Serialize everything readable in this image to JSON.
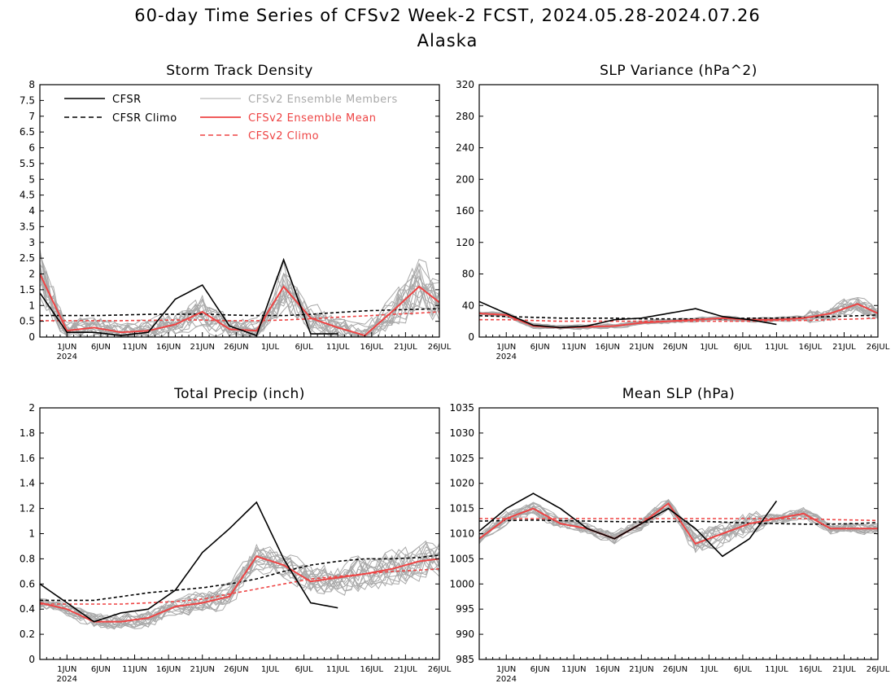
{
  "figure": {
    "title": "60-day Time Series of CFSv2 Week-2 FCST, 2024.05.28-2024.07.26",
    "subtitle": "Alaska"
  },
  "colors": {
    "cfsr": "#000000",
    "cfsr_climo": "#000000",
    "members": "#a9a9a9",
    "ens_mean": "#ee4444",
    "cfsv2_climo": "#ee4444"
  },
  "legend": {
    "cfsr": "CFSR",
    "cfsr_climo": "CFSR Climo",
    "members": "CFSv2 Ensemble Members",
    "ens_mean": "CFSv2 Ensemble Mean",
    "cfsv2_climo": "CFSv2 Climo"
  },
  "x_axis": {
    "ticks": [
      "1JUN",
      "6JUN",
      "11JUN",
      "16JUN",
      "21JUN",
      "26JUN",
      "1JUL",
      "6JUL",
      "11JUL",
      "16JUL",
      "21JUL",
      "26JUL"
    ],
    "year_label": "2024"
  },
  "chart_data": [
    {
      "type": "line",
      "title": "Storm Track Density",
      "legend_position": "top-left",
      "ylim": [
        0,
        8
      ],
      "yticks": [
        "0",
        "0.5",
        "1",
        "1.5",
        "2",
        "2.5",
        "3",
        "3.5",
        "4",
        "4.5",
        "5",
        "5.5",
        "6",
        "6.5",
        "7",
        "7.5",
        "8"
      ],
      "x": [
        "05-28",
        "06-01",
        "06-05",
        "06-09",
        "06-13",
        "06-17",
        "06-21",
        "06-25",
        "06-29",
        "07-03",
        "07-07",
        "07-11",
        "07-15",
        "07-19",
        "07-23",
        "07-26"
      ],
      "series": [
        {
          "name": "CFSR",
          "values": [
            1.4,
            0.15,
            0.15,
            0.05,
            0.15,
            1.2,
            1.65,
            0.35,
            0.05,
            2.45,
            0.1,
            0.1,
            null,
            null,
            null,
            null
          ]
        },
        {
          "name": "CFSR Climo",
          "values": [
            0.68,
            0.68,
            0.68,
            0.7,
            0.72,
            0.72,
            0.73,
            0.7,
            0.68,
            0.68,
            0.72,
            0.78,
            0.83,
            0.86,
            0.88,
            0.9
          ]
        },
        {
          "name": "CFSv2 Ensemble Mean",
          "values": [
            2.0,
            0.2,
            0.3,
            0.15,
            0.2,
            0.4,
            0.8,
            0.25,
            0.2,
            1.6,
            0.6,
            0.3,
            0.05,
            0.8,
            1.6,
            1.1
          ]
        },
        {
          "name": "CFSv2 Climo",
          "values": [
            0.52,
            0.52,
            0.52,
            0.52,
            0.53,
            0.54,
            0.54,
            0.52,
            0.52,
            0.54,
            0.58,
            0.63,
            0.67,
            0.72,
            0.76,
            0.8
          ]
        }
      ]
    },
    {
      "type": "line",
      "title": "SLP Variance (hPa^2)",
      "ylim": [
        0,
        320
      ],
      "yticks": [
        "0",
        "40",
        "80",
        "120",
        "160",
        "200",
        "240",
        "280",
        "320"
      ],
      "x": [
        "05-28",
        "06-01",
        "06-05",
        "06-09",
        "06-13",
        "06-17",
        "06-21",
        "06-25",
        "06-29",
        "07-03",
        "07-07",
        "07-11",
        "07-15",
        "07-19",
        "07-23",
        "07-26"
      ],
      "series": [
        {
          "name": "CFSR",
          "values": [
            45,
            30,
            15,
            12,
            14,
            22,
            24,
            30,
            36,
            26,
            22,
            16,
            null,
            null,
            null,
            null
          ]
        },
        {
          "name": "CFSR Climo",
          "values": [
            27,
            26,
            25,
            24,
            24,
            24,
            23,
            23,
            23,
            23,
            24,
            24,
            25,
            26,
            27,
            28
          ]
        },
        {
          "name": "CFSv2 Ensemble Mean",
          "values": [
            30,
            28,
            14,
            12,
            13,
            14,
            18,
            20,
            22,
            24,
            22,
            22,
            24,
            30,
            42,
            30
          ]
        },
        {
          "name": "CFSv2 Climo",
          "values": [
            22,
            22,
            21,
            20,
            20,
            20,
            20,
            20,
            20,
            20,
            20,
            21,
            21,
            22,
            23,
            24
          ]
        }
      ]
    },
    {
      "type": "line",
      "title": "Total Precip (inch)",
      "ylim": [
        0,
        2
      ],
      "yticks": [
        "0",
        "0.2",
        "0.4",
        "0.6",
        "0.8",
        "1",
        "1.2",
        "1.4",
        "1.6",
        "1.8",
        "2"
      ],
      "x": [
        "05-28",
        "06-01",
        "06-05",
        "06-09",
        "06-13",
        "06-17",
        "06-21",
        "06-25",
        "06-29",
        "07-03",
        "07-07",
        "07-11",
        "07-15",
        "07-19",
        "07-23",
        "07-26"
      ],
      "series": [
        {
          "name": "CFSR",
          "values": [
            0.6,
            0.45,
            0.3,
            0.37,
            0.4,
            0.55,
            0.85,
            1.04,
            1.25,
            0.8,
            0.45,
            0.41,
            null,
            null,
            null,
            null
          ]
        },
        {
          "name": "CFSR Climo",
          "values": [
            0.47,
            0.47,
            0.47,
            0.5,
            0.53,
            0.55,
            0.57,
            0.6,
            0.64,
            0.7,
            0.75,
            0.78,
            0.8,
            0.8,
            0.81,
            0.83
          ]
        },
        {
          "name": "CFSv2 Ensemble Mean",
          "values": [
            0.45,
            0.4,
            0.3,
            0.3,
            0.33,
            0.42,
            0.45,
            0.5,
            0.82,
            0.75,
            0.62,
            0.65,
            0.68,
            0.72,
            0.78,
            0.8
          ]
        },
        {
          "name": "CFSv2 Climo",
          "values": [
            0.44,
            0.44,
            0.44,
            0.44,
            0.45,
            0.46,
            0.48,
            0.52,
            0.56,
            0.6,
            0.64,
            0.66,
            0.68,
            0.7,
            0.71,
            0.72
          ]
        }
      ]
    },
    {
      "type": "line",
      "title": "Mean SLP (hPa)",
      "ylim": [
        985,
        1035
      ],
      "yticks": [
        "985",
        "990",
        "995",
        "1000",
        "1005",
        "1010",
        "1015",
        "1020",
        "1025",
        "1030",
        "1035"
      ],
      "x": [
        "05-28",
        "06-01",
        "06-05",
        "06-09",
        "06-13",
        "06-17",
        "06-21",
        "06-25",
        "06-29",
        "07-03",
        "07-07",
        "07-11",
        "07-15",
        "07-19",
        "07-23",
        "07-26"
      ],
      "series": [
        {
          "name": "CFSR",
          "values": [
            1010.5,
            1015,
            1018,
            1015,
            1011,
            1009,
            1012,
            1015,
            1011,
            1005.5,
            1009,
            1016.5,
            null,
            null,
            null,
            null
          ]
        },
        {
          "name": "CFSR Climo",
          "values": [
            1012.5,
            1012.6,
            1012.7,
            1012.6,
            1012.5,
            1012.4,
            1012.3,
            1012.4,
            1012.5,
            1012.3,
            1012.1,
            1012,
            1011.9,
            1011.9,
            1012,
            1012.2
          ]
        },
        {
          "name": "CFSv2 Ensemble Mean",
          "values": [
            1009,
            1013,
            1015,
            1012,
            1011,
            1009,
            1012,
            1016,
            1008,
            1010,
            1012,
            1013,
            1014,
            1011,
            1011,
            1011
          ]
        },
        {
          "name": "CFSv2 Climo",
          "values": [
            1013,
            1013,
            1013,
            1013,
            1013,
            1013,
            1013,
            1013,
            1013,
            1013,
            1013,
            1013,
            1013,
            1012.8,
            1012.7,
            1012.6
          ]
        }
      ]
    }
  ]
}
